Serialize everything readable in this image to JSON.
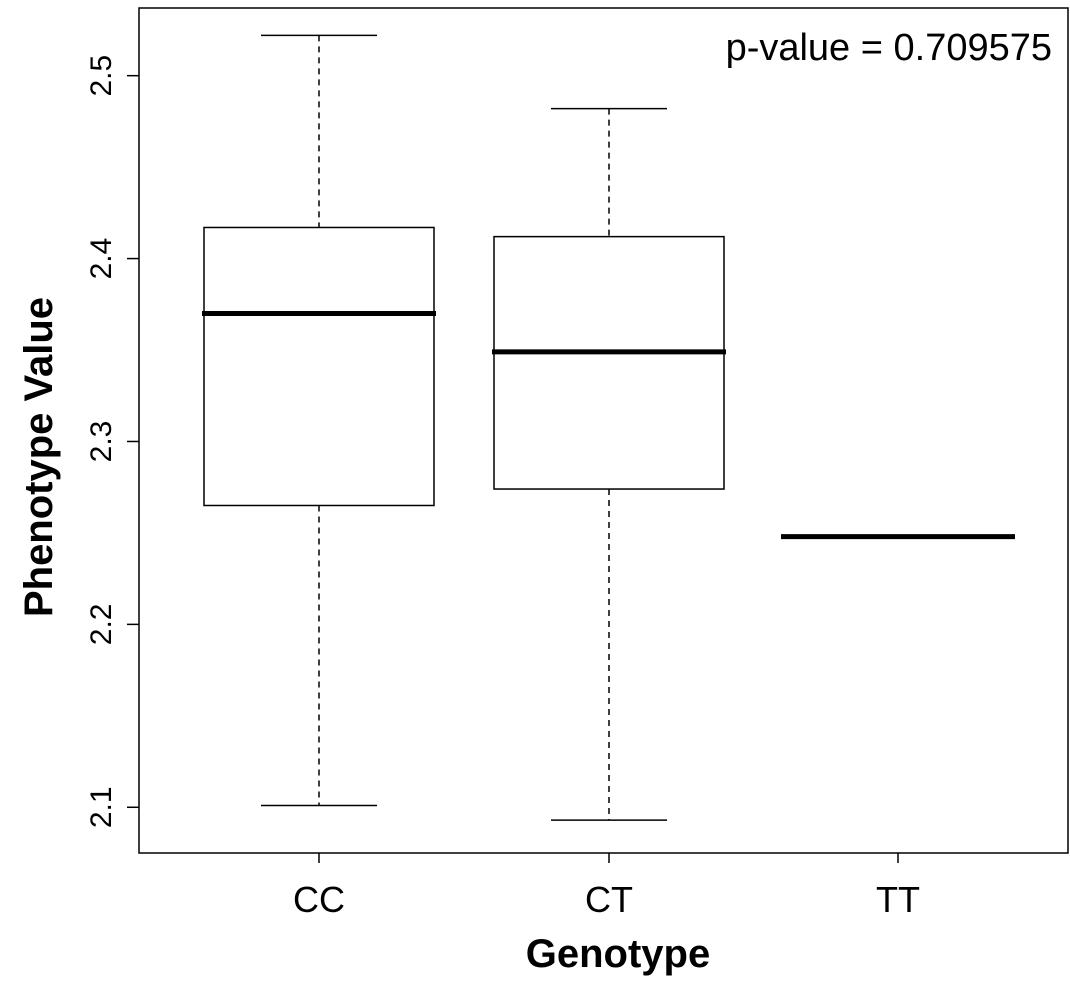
{
  "chart_data": {
    "type": "box",
    "xlabel": "Genotype",
    "ylabel": "Phenotype Value",
    "annotation": "p-value = 0.709575",
    "categories": [
      "CC",
      "CT",
      "TT"
    ],
    "y_ticks": [
      2.1,
      2.2,
      2.3,
      2.4,
      2.5
    ],
    "y_tick_labels": [
      "2.1",
      "2.2",
      "2.3",
      "2.4",
      "2.5"
    ],
    "ylim": [
      2.075,
      2.537
    ],
    "grid": false,
    "legend": "none",
    "boxes": [
      {
        "category": "CC",
        "min": 2.101,
        "q1": 2.265,
        "median": 2.37,
        "q3": 2.417,
        "max": 2.522
      },
      {
        "category": "CT",
        "min": 2.093,
        "q1": 2.274,
        "median": 2.349,
        "q3": 2.412,
        "max": 2.482
      },
      {
        "category": "TT",
        "min": 2.248,
        "q1": 2.248,
        "median": 2.248,
        "q3": 2.248,
        "max": 2.248
      }
    ]
  }
}
